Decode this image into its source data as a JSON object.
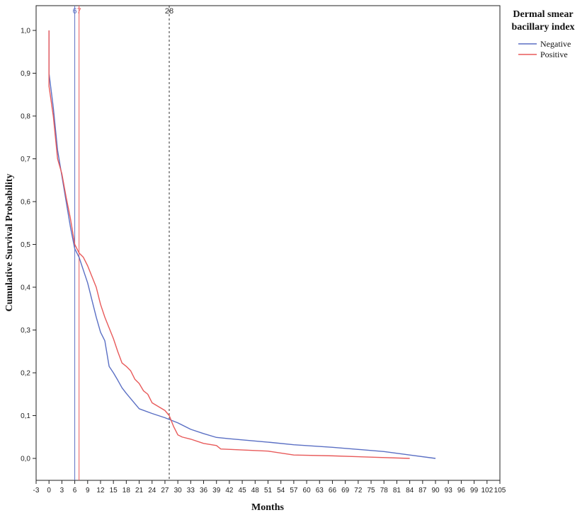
{
  "chart_data": {
    "type": "line",
    "xlabel": "Months",
    "ylabel": "Cumulative Survival Probability",
    "xlim": [
      -3,
      105
    ],
    "ylim": [
      0,
      1
    ],
    "x_ticks": [
      -3,
      0,
      3,
      6,
      9,
      12,
      15,
      18,
      21,
      24,
      27,
      30,
      33,
      36,
      39,
      42,
      45,
      48,
      51,
      54,
      57,
      60,
      63,
      66,
      69,
      72,
      75,
      78,
      81,
      84,
      87,
      90,
      93,
      96,
      99,
      102,
      105
    ],
    "y_ticks": [
      {
        "value": 0.0,
        "label": "0,0"
      },
      {
        "value": 0.1,
        "label": "0,1"
      },
      {
        "value": 0.2,
        "label": "0,2"
      },
      {
        "value": 0.3,
        "label": "0,3"
      },
      {
        "value": 0.4,
        "label": "0,4"
      },
      {
        "value": 0.5,
        "label": "0,5"
      },
      {
        "value": 0.6,
        "label": "0,6"
      },
      {
        "value": 0.7,
        "label": "0,7"
      },
      {
        "value": 0.8,
        "label": "0,8"
      },
      {
        "value": 0.9,
        "label": "0,9"
      },
      {
        "value": 1.0,
        "label": "1,0"
      }
    ],
    "grid": false,
    "legend": {
      "title_lines": [
        "Dermal smear",
        "bacillary index"
      ],
      "placement": "top-right"
    },
    "series": [
      {
        "name": "Negative",
        "color": "#5a6fc4",
        "points": [
          [
            0,
            1.0
          ],
          [
            0,
            0.9
          ],
          [
            1,
            0.82
          ],
          [
            2,
            0.72
          ],
          [
            3,
            0.66
          ],
          [
            4,
            0.6
          ],
          [
            5,
            0.54
          ],
          [
            6,
            0.49
          ],
          [
            7,
            0.47
          ],
          [
            8,
            0.44
          ],
          [
            9,
            0.41
          ],
          [
            10,
            0.37
          ],
          [
            11,
            0.33
          ],
          [
            12,
            0.295
          ],
          [
            13,
            0.275
          ],
          [
            14,
            0.215
          ],
          [
            15,
            0.2
          ],
          [
            16,
            0.183
          ],
          [
            17,
            0.165
          ],
          [
            18,
            0.152
          ],
          [
            19,
            0.14
          ],
          [
            20,
            0.128
          ],
          [
            21,
            0.116
          ],
          [
            24,
            0.105
          ],
          [
            27,
            0.095
          ],
          [
            30,
            0.083
          ],
          [
            33,
            0.068
          ],
          [
            36,
            0.058
          ],
          [
            39,
            0.049
          ],
          [
            42,
            0.046
          ],
          [
            51,
            0.038
          ],
          [
            57,
            0.032
          ],
          [
            66,
            0.026
          ],
          [
            72,
            0.021
          ],
          [
            78,
            0.016
          ],
          [
            84,
            0.008
          ],
          [
            90,
            0.0
          ]
        ]
      },
      {
        "name": "Positive",
        "color": "#e85a5a",
        "points": [
          [
            0,
            1.0
          ],
          [
            0,
            0.87
          ],
          [
            1,
            0.8
          ],
          [
            2,
            0.7
          ],
          [
            3,
            0.665
          ],
          [
            4,
            0.61
          ],
          [
            5,
            0.56
          ],
          [
            6,
            0.5
          ],
          [
            7,
            0.48
          ],
          [
            8,
            0.47
          ],
          [
            9,
            0.45
          ],
          [
            10,
            0.425
          ],
          [
            11,
            0.4
          ],
          [
            12,
            0.36
          ],
          [
            13,
            0.33
          ],
          [
            14,
            0.305
          ],
          [
            15,
            0.28
          ],
          [
            16,
            0.25
          ],
          [
            17,
            0.223
          ],
          [
            18,
            0.215
          ],
          [
            19,
            0.205
          ],
          [
            20,
            0.185
          ],
          [
            21,
            0.175
          ],
          [
            22,
            0.158
          ],
          [
            23,
            0.15
          ],
          [
            24,
            0.13
          ],
          [
            27,
            0.112
          ],
          [
            28,
            0.1
          ],
          [
            29,
            0.075
          ],
          [
            30,
            0.055
          ],
          [
            31,
            0.05
          ],
          [
            33,
            0.045
          ],
          [
            36,
            0.035
          ],
          [
            39,
            0.03
          ],
          [
            40,
            0.022
          ],
          [
            51,
            0.017
          ],
          [
            57,
            0.008
          ],
          [
            66,
            0.006
          ],
          [
            84,
            0.0
          ]
        ]
      }
    ],
    "reference_lines": [
      {
        "x": 6,
        "label": "6",
        "color": "#5a6fc4",
        "style": "solid"
      },
      {
        "x": 7,
        "label": "7",
        "color": "#e85a5a",
        "style": "solid"
      },
      {
        "x": 28,
        "label": "28",
        "color": "#333333",
        "style": "dashed"
      }
    ]
  }
}
